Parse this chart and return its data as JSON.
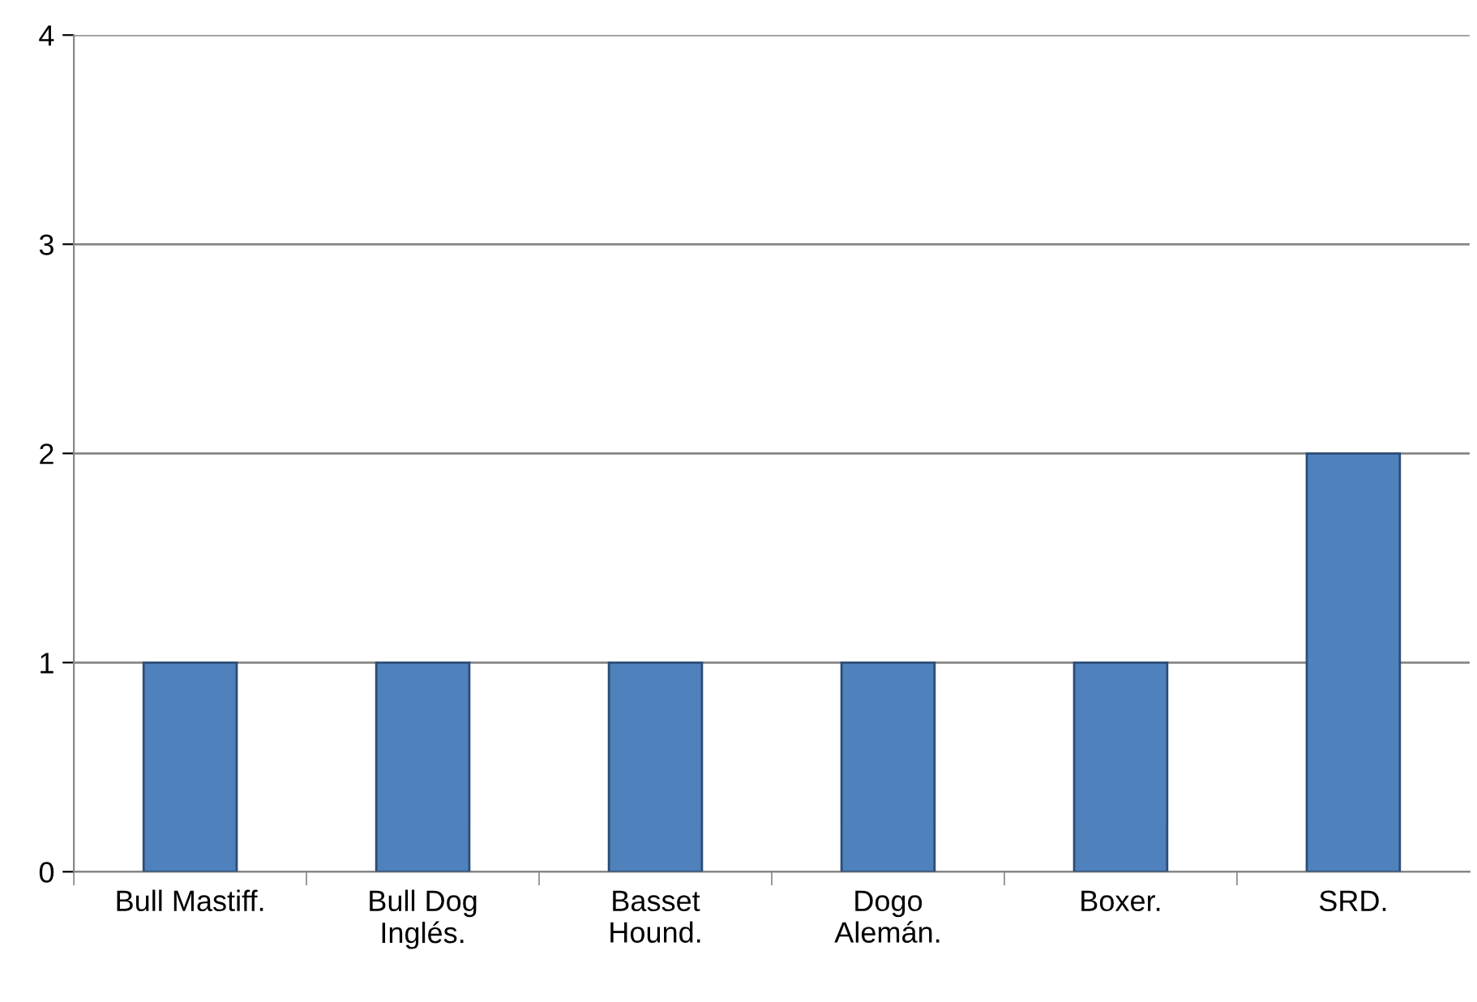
{
  "chart_data": {
    "type": "bar",
    "categories": [
      "Bull Mastiff.",
      "Bull Dog\nInglés.",
      "Basset\nHound.",
      "Dogo\nAlemán.",
      "Boxer.",
      "SRD."
    ],
    "values": [
      1,
      1,
      1,
      1,
      1,
      2
    ],
    "color": "#4f81bd",
    "ylim": [
      0,
      4
    ],
    "yticks": [
      0,
      1,
      2,
      3,
      4
    ],
    "grid": "y"
  }
}
